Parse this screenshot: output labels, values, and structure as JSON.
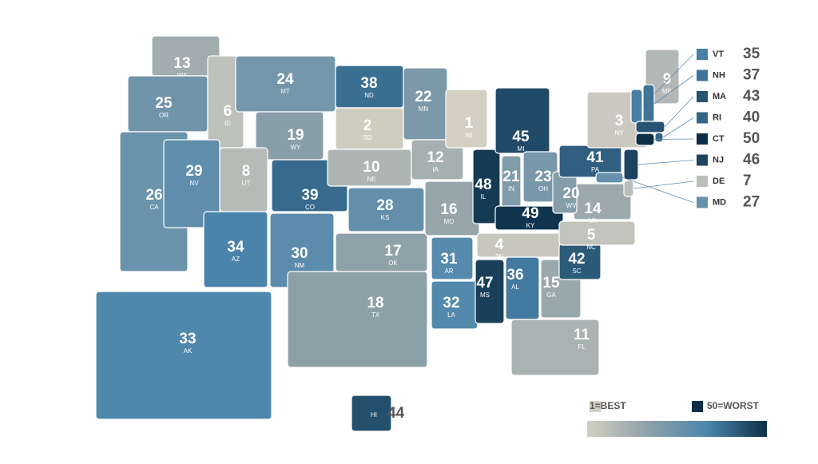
{
  "states": [
    {
      "abbr": "WA",
      "rank": 13
    },
    {
      "abbr": "OR",
      "rank": 25
    },
    {
      "abbr": "CA",
      "rank": 26
    },
    {
      "abbr": "ID",
      "rank": 6
    },
    {
      "abbr": "NV",
      "rank": 29
    },
    {
      "abbr": "MT",
      "rank": 24
    },
    {
      "abbr": "WY",
      "rank": 19
    },
    {
      "abbr": "UT",
      "rank": 8
    },
    {
      "abbr": "AZ",
      "rank": 34
    },
    {
      "abbr": "CO",
      "rank": 39
    },
    {
      "abbr": "NM",
      "rank": 30
    },
    {
      "abbr": "ND",
      "rank": 38
    },
    {
      "abbr": "SD",
      "rank": 2
    },
    {
      "abbr": "NE",
      "rank": 10
    },
    {
      "abbr": "KS",
      "rank": 28
    },
    {
      "abbr": "OK",
      "rank": 17
    },
    {
      "abbr": "TX",
      "rank": 18
    },
    {
      "abbr": "MN",
      "rank": 22
    },
    {
      "abbr": "IA",
      "rank": 12
    },
    {
      "abbr": "MO",
      "rank": 16
    },
    {
      "abbr": "AR",
      "rank": 31
    },
    {
      "abbr": "LA",
      "rank": 32
    },
    {
      "abbr": "WI",
      "rank": 1
    },
    {
      "abbr": "IL",
      "rank": 48
    },
    {
      "abbr": "MI",
      "rank": 45
    },
    {
      "abbr": "IN",
      "rank": 21
    },
    {
      "abbr": "OH",
      "rank": 23
    },
    {
      "abbr": "KY",
      "rank": 49
    },
    {
      "abbr": "TN",
      "rank": 4
    },
    {
      "abbr": "MS",
      "rank": 47
    },
    {
      "abbr": "AL",
      "rank": 36
    },
    {
      "abbr": "GA",
      "rank": 15
    },
    {
      "abbr": "FL",
      "rank": 11
    },
    {
      "abbr": "SC",
      "rank": 42
    },
    {
      "abbr": "NC",
      "rank": 5
    },
    {
      "abbr": "VA",
      "rank": 14
    },
    {
      "abbr": "WV",
      "rank": 20
    },
    {
      "abbr": "PA",
      "rank": 41
    },
    {
      "abbr": "NY",
      "rank": 3
    },
    {
      "abbr": "ME",
      "rank": 9
    },
    {
      "abbr": "AK",
      "rank": 33
    },
    {
      "abbr": "HI",
      "rank": 44,
      "number_outside": true
    },
    {
      "abbr": "VT",
      "rank": 35,
      "callout": true
    },
    {
      "abbr": "NH",
      "rank": 37,
      "callout": true
    },
    {
      "abbr": "MA",
      "rank": 43,
      "callout": true
    },
    {
      "abbr": "RI",
      "rank": 40,
      "callout": true
    },
    {
      "abbr": "CT",
      "rank": 50,
      "callout": true
    },
    {
      "abbr": "NJ",
      "rank": 46,
      "callout": true
    },
    {
      "abbr": "DE",
      "rank": 7,
      "callout": true
    },
    {
      "abbr": "MD",
      "rank": 27,
      "callout": true
    }
  ],
  "color_scale": [
    "#d3cfc2",
    "#8fa1a8",
    "#4c86ad",
    "#0d2f48"
  ],
  "rank_range": [
    1,
    50
  ],
  "legend": {
    "best": "1=BEST",
    "worst": "50=WORST"
  }
}
